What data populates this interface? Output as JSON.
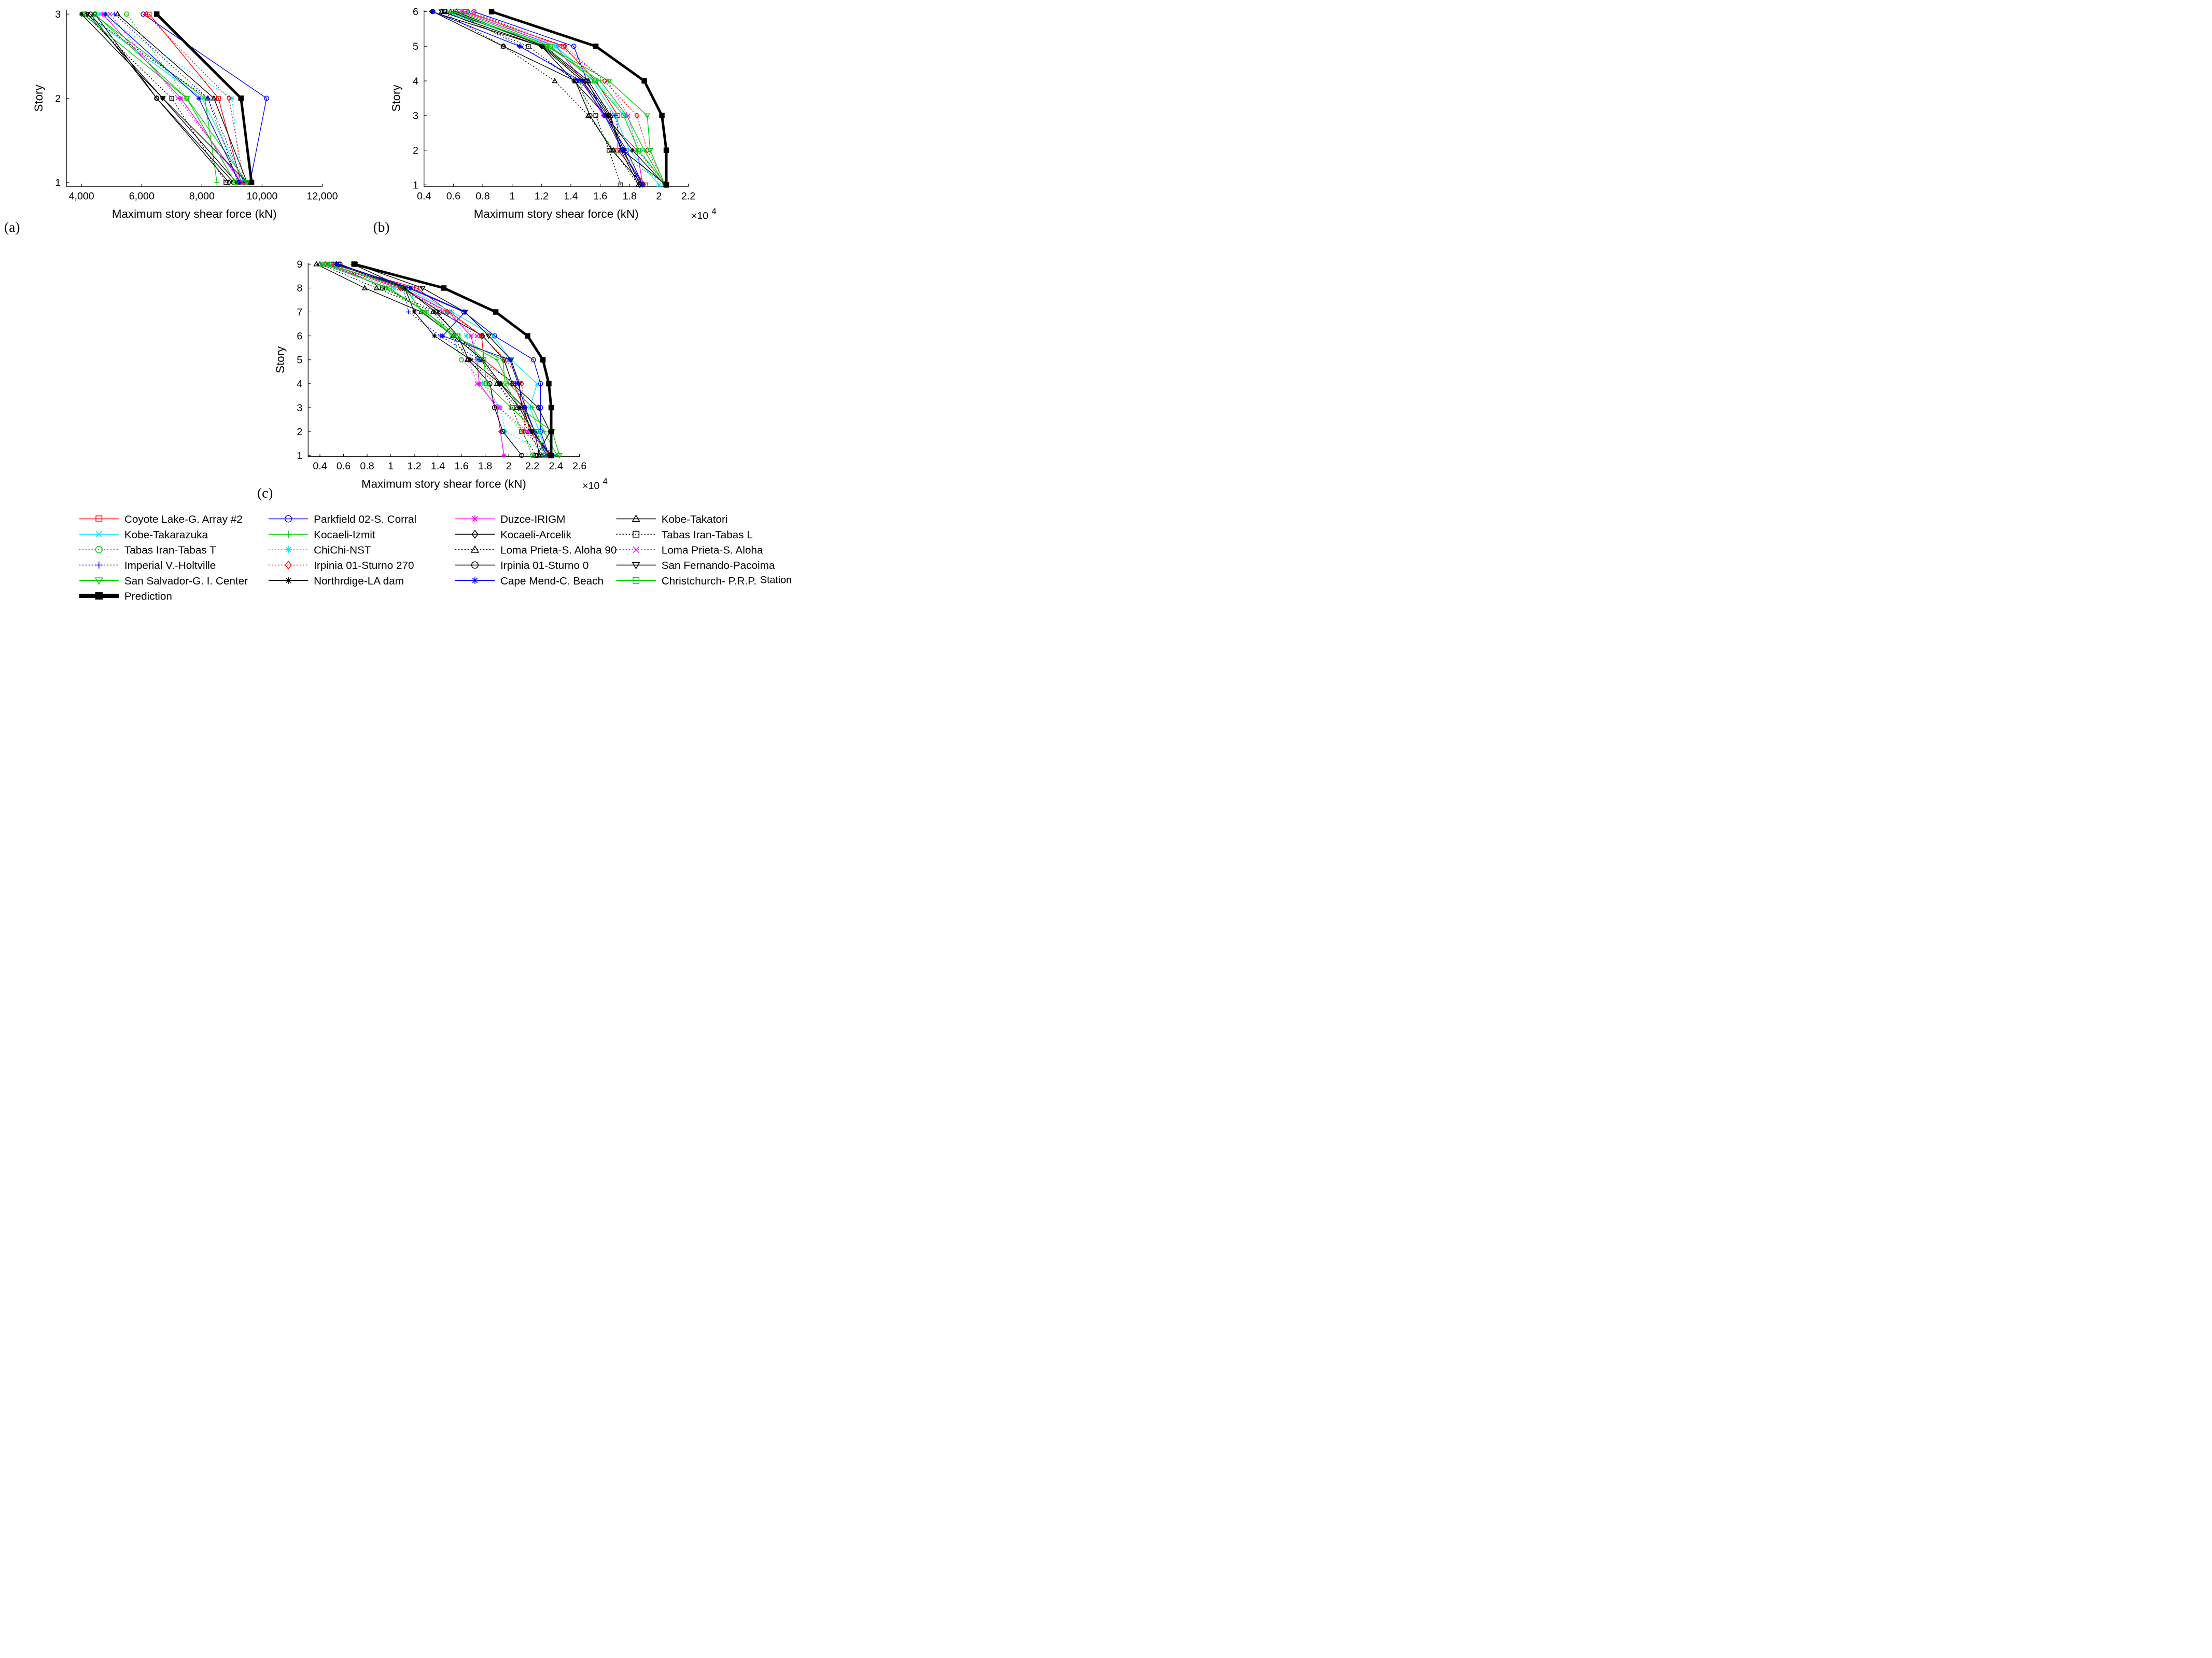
{
  "figure": {
    "panel_labels": [
      "(a)",
      "(b)",
      "(c)"
    ],
    "legend": {
      "entries": [
        {
          "label": "Coyote Lake-G. Array #2",
          "color": "#ff0000",
          "marker": "square",
          "dash": "solid"
        },
        {
          "label": "Parkfield 02-S. Corral",
          "color": "#0000ff",
          "marker": "circle",
          "dash": "solid"
        },
        {
          "label": "Duzce-IRIGM",
          "color": "#ff00ff",
          "marker": "asterisk",
          "dash": "solid"
        },
        {
          "label": "Kobe-Takatori",
          "color": "#000000",
          "marker": "triangle",
          "dash": "solid"
        },
        {
          "label": "Kobe-Takarazuka",
          "color": "#00e5ff",
          "marker": "x",
          "dash": "solid"
        },
        {
          "label": "Kocaeli-Izmit",
          "color": "#00cc00",
          "marker": "plus",
          "dash": "solid"
        },
        {
          "label": "Kocaeli-Arcelik",
          "color": "#000000",
          "marker": "diamond",
          "dash": "solid"
        },
        {
          "label": "Tabas Iran-Tabas L",
          "color": "#000000",
          "marker": "square",
          "dash": "dotted"
        },
        {
          "label": "Tabas Iran-Tabas T",
          "color": "#00cc00",
          "marker": "circle",
          "dash": "dotted"
        },
        {
          "label": "ChiChi-NST",
          "color": "#00e5ff",
          "marker": "asterisk",
          "dash": "dotted"
        },
        {
          "label": "Loma Prieta-S. Aloha 90",
          "color": "#000000",
          "marker": "triangle",
          "dash": "dotted"
        },
        {
          "label": "Loma Prieta-S. Aloha",
          "color": "#ff00ff",
          "marker": "x",
          "dash": "dotted"
        },
        {
          "label": "Imperial V.-Holtville",
          "color": "#0000ff",
          "marker": "plus",
          "dash": "dotted"
        },
        {
          "label": "Irpinia 01-Sturno 270",
          "color": "#ff0000",
          "marker": "diamond",
          "dash": "dotted"
        },
        {
          "label": "Irpinia 01-Sturno 0",
          "color": "#000000",
          "marker": "circle",
          "dash": "solid"
        },
        {
          "label": "San Fernando-Pacoima",
          "color": "#000000",
          "marker": "triangle-down",
          "dash": "solid"
        },
        {
          "label": "San Salvador-G. I. Center",
          "color": "#00cc00",
          "marker": "triangle-down",
          "dash": "solid"
        },
        {
          "label": "Northrdige-LA dam",
          "color": "#000000",
          "marker": "asterisk",
          "dash": "solid"
        },
        {
          "label": "Cape Mend-C. Beach",
          "color": "#0000ff",
          "marker": "asterisk",
          "dash": "solid"
        },
        {
          "label": "Christchurch- P.R.P.",
          "color": "#00cc00",
          "marker": "square",
          "dash": "solid"
        },
        {
          "label": "Prediction",
          "color": "#000000",
          "marker": "filled-square",
          "dash": "thick"
        }
      ],
      "christchurch_suffix": "Station"
    }
  },
  "chart_data": [
    {
      "type": "line",
      "panel": "(a)",
      "orientation": "horizontal-profile",
      "title": "",
      "xlabel": "Maximum story shear force (kN)",
      "ylabel": "Story",
      "xlim": [
        3500,
        12000
      ],
      "ylim": [
        0.95,
        3.05
      ],
      "xticks": [
        4000,
        6000,
        8000,
        10000,
        12000
      ],
      "xtick_labels": [
        "4,000",
        "6,000",
        "8,000",
        "10,000",
        "12,000"
      ],
      "yticks": [
        1,
        2,
        3
      ],
      "ytick_labels": [
        "1",
        "2",
        "3"
      ],
      "x_multiplier": "",
      "stories": [
        1,
        2,
        3
      ],
      "series": [
        {
          "name": "Coyote Lake-G. Array #2",
          "values": [
            9300,
            8550,
            6250
          ]
        },
        {
          "name": "Parkfield 02-S. Corral",
          "values": [
            9600,
            10150,
            6050
          ]
        },
        {
          "name": "Duzce-IRIGM",
          "values": [
            9300,
            7300,
            4700
          ]
        },
        {
          "name": "Kobe-Takatori",
          "values": [
            9500,
            8400,
            5200
          ]
        },
        {
          "name": "Kobe-Takarazuka",
          "values": [
            9400,
            8000,
            4150
          ]
        },
        {
          "name": "Kocaeli-Izmit",
          "values": [
            8500,
            8100,
            4400
          ]
        },
        {
          "name": "Kocaeli-Arcelik",
          "values": [
            8900,
            6500,
            4450
          ]
        },
        {
          "name": "Tabas Iran-Tabas L",
          "values": [
            8800,
            7000,
            4100
          ]
        },
        {
          "name": "Tabas Iran-Tabas T",
          "values": [
            9100,
            7500,
            5500
          ]
        },
        {
          "name": "ChiChi-NST",
          "values": [
            9300,
            9000,
            4600
          ]
        },
        {
          "name": "Loma Prieta-S. Aloha 90",
          "values": [
            9200,
            8200,
            4150
          ]
        },
        {
          "name": "Loma Prieta-S. Aloha",
          "values": [
            9350,
            7200,
            4950
          ]
        },
        {
          "name": "Imperial V.-Holtville",
          "values": [
            9400,
            8200,
            5100
          ]
        },
        {
          "name": "Irpinia 01-Sturno 270",
          "values": [
            9400,
            8900,
            6150
          ]
        },
        {
          "name": "Irpinia 01-Sturno 0",
          "values": [
            9050,
            6500,
            4300
          ]
        },
        {
          "name": "San Fernando-Pacoima",
          "values": [
            9500,
            6700,
            4200
          ]
        },
        {
          "name": "San Salvador-G. I. Center",
          "values": [
            9500,
            7500,
            4050
          ]
        },
        {
          "name": "Northrdige-LA dam",
          "values": [
            9150,
            6700,
            4000
          ]
        },
        {
          "name": "Cape Mend-C. Beach",
          "values": [
            9250,
            7900,
            4800
          ]
        },
        {
          "name": "Christchurch- P.R.P.",
          "values": [
            9100,
            7500,
            4450
          ]
        },
        {
          "name": "Prediction",
          "values": [
            9650,
            9300,
            6500
          ]
        }
      ]
    },
    {
      "type": "line",
      "panel": "(b)",
      "orientation": "horizontal-profile",
      "title": "",
      "xlabel": "Maximum story shear force (kN)",
      "ylabel": "Story",
      "xlim": [
        0.4,
        2.2
      ],
      "ylim": [
        0.95,
        6.05
      ],
      "xticks": [
        0.4,
        0.6,
        0.8,
        1.0,
        1.2,
        1.4,
        1.6,
        1.8,
        2.0,
        2.2
      ],
      "xtick_labels": [
        "0.4",
        "0.6",
        "0.8",
        "1",
        "1.2",
        "1.4",
        "1.6",
        "1.8",
        "2",
        "2.2"
      ],
      "yticks": [
        1,
        2,
        3,
        4,
        5,
        6
      ],
      "ytick_labels": [
        "1",
        "2",
        "3",
        "4",
        "5",
        "6"
      ],
      "x_multiplier": "×10",
      "x_multiplier_exp": "4",
      "stories": [
        1,
        2,
        3,
        4,
        5,
        6
      ],
      "series": [
        {
          "name": "Coyote Lake-G. Array #2",
          "values": [
            1.91,
            1.72,
            1.72,
            1.57,
            1.35,
            0.68
          ]
        },
        {
          "name": "Parkfield 02-S. Corral",
          "values": [
            1.89,
            1.78,
            1.63,
            1.51,
            1.42,
            0.74
          ]
        },
        {
          "name": "Duzce-IRIGM",
          "values": [
            1.89,
            1.85,
            1.62,
            1.48,
            1.3,
            0.66
          ]
        },
        {
          "name": "Kobe-Takatori",
          "values": [
            1.86,
            1.74,
            1.67,
            1.52,
            1.22,
            0.58
          ]
        },
        {
          "name": "Kobe-Takarazuka",
          "values": [
            2.0,
            1.8,
            1.7,
            1.55,
            1.3,
            0.53
          ]
        },
        {
          "name": "Kocaeli-Izmit",
          "values": [
            2.04,
            1.9,
            1.78,
            1.6,
            1.24,
            0.56
          ]
        },
        {
          "name": "Kocaeli-Arcelik",
          "values": [
            1.87,
            1.76,
            1.66,
            1.5,
            1.21,
            0.62
          ]
        },
        {
          "name": "Tabas Iran-Tabas L",
          "values": [
            1.74,
            1.66,
            1.57,
            1.43,
            1.11,
            0.54
          ]
        },
        {
          "name": "Tabas Iran-Tabas T",
          "values": [
            2.05,
            1.69,
            1.53,
            1.46,
            1.24,
            0.74
          ]
        },
        {
          "name": "ChiChi-NST",
          "values": [
            2.0,
            1.88,
            1.77,
            1.57,
            1.3,
            0.7
          ]
        },
        {
          "name": "Loma Prieta-S. Aloha 90",
          "values": [
            1.86,
            1.69,
            1.52,
            1.29,
            0.94,
            0.52
          ]
        },
        {
          "name": "Loma Prieta-S. Aloha",
          "values": [
            2.05,
            1.85,
            1.79,
            1.65,
            1.32,
            0.74
          ]
        },
        {
          "name": "Imperial V.-Holtville",
          "values": [
            1.88,
            1.75,
            1.7,
            1.45,
            1.06,
            0.6
          ]
        },
        {
          "name": "Irpinia 01-Sturno 270",
          "values": [
            2.05,
            1.92,
            1.85,
            1.63,
            1.36,
            0.7
          ]
        },
        {
          "name": "Irpinia 01-Sturno 0",
          "values": [
            1.89,
            1.68,
            1.53,
            1.43,
            0.94,
            0.46
          ]
        },
        {
          "name": "San Fernando-Pacoima",
          "values": [
            2.05,
            1.75,
            1.65,
            1.48,
            1.2,
            0.52
          ]
        },
        {
          "name": "San Salvador-G. I. Center",
          "values": [
            2.04,
            1.94,
            1.92,
            1.66,
            1.24,
            0.6
          ]
        },
        {
          "name": "Northrdige-LA dam",
          "values": [
            2.04,
            1.82,
            1.64,
            1.42,
            1.2,
            0.45
          ]
        },
        {
          "name": "Cape Mend-C. Beach",
          "values": [
            1.89,
            1.75,
            1.63,
            1.47,
            1.05,
            0.46
          ]
        },
        {
          "name": "Christchurch- P.R.P.",
          "values": [
            2.05,
            1.86,
            1.76,
            1.56,
            1.26,
            0.64
          ]
        },
        {
          "name": "Prediction",
          "values": [
            2.05,
            2.05,
            2.02,
            1.9,
            1.57,
            0.86
          ]
        }
      ]
    },
    {
      "type": "line",
      "panel": "(c)",
      "orientation": "horizontal-profile",
      "title": "",
      "xlabel": "Maximum story shear force (kN)",
      "ylabel": "Story",
      "xlim": [
        0.3,
        2.6
      ],
      "ylim": [
        0.95,
        9.05
      ],
      "xticks": [
        0.4,
        0.6,
        0.8,
        1.0,
        1.2,
        1.4,
        1.6,
        1.8,
        2.0,
        2.2,
        2.4,
        2.6
      ],
      "xtick_labels": [
        "0.4",
        "0.6",
        "0.8",
        "1",
        "1.2",
        "1.4",
        "1.6",
        "1.8",
        "2",
        "2.2",
        "2.4",
        "2.6"
      ],
      "yticks": [
        1,
        2,
        3,
        4,
        5,
        6,
        7,
        8,
        9
      ],
      "ytick_labels": [
        "1",
        "2",
        "3",
        "4",
        "5",
        "6",
        "7",
        "8",
        "9"
      ],
      "x_multiplier": "×10",
      "x_multiplier_exp": "4",
      "stories": [
        1,
        2,
        3,
        4,
        5,
        6,
        7,
        8,
        9
      ],
      "series": [
        {
          "name": "Coyote Lake-G. Array #2",
          "values": [
            2.35,
            2.18,
            2.13,
            2.04,
            1.79,
            1.77,
            1.5,
            1.22,
            0.5
          ]
        },
        {
          "name": "Parkfield 02-S. Corral",
          "values": [
            2.34,
            2.27,
            2.27,
            2.27,
            2.21,
            1.88,
            1.62,
            1.15,
            0.56
          ]
        },
        {
          "name": "Duzce-IRIGM",
          "values": [
            1.96,
            1.93,
            1.9,
            1.75,
            1.73,
            1.68,
            1.49,
            1.1,
            0.47
          ]
        },
        {
          "name": "Kobe-Takatori",
          "values": [
            2.26,
            2.22,
            2.13,
            1.93,
            1.78,
            1.53,
            1.26,
            0.78,
            0.37
          ]
        },
        {
          "name": "Kobe-Takarazuka",
          "values": [
            2.32,
            2.26,
            2.18,
            2.24,
            2.02,
            1.87,
            1.52,
            1.13,
            0.44
          ]
        },
        {
          "name": "Kocaeli-Izmit",
          "values": [
            2.41,
            2.3,
            2.2,
            2.0,
            1.9,
            1.53,
            1.3,
            0.97,
            0.46
          ]
        },
        {
          "name": "Kocaeli-Arcelik",
          "values": [
            2.24,
            2.35,
            2.25,
            2.03,
            1.96,
            1.78,
            1.42,
            1.1,
            0.54
          ]
        },
        {
          "name": "Tabas Iran-Tabas L",
          "values": [
            2.23,
            2.11,
            2.03,
            1.92,
            1.76,
            1.57,
            1.39,
            0.93,
            0.52
          ]
        },
        {
          "name": "Tabas Iran-Tabas T",
          "values": [
            2.2,
            2.12,
            1.92,
            1.8,
            1.6,
            1.52,
            1.3,
            0.95,
            0.48
          ]
        },
        {
          "name": "ChiChi-NST",
          "values": [
            2.38,
            1.97,
            1.93,
            1.78,
            1.74,
            1.64,
            1.47,
            1.03,
            0.43
          ]
        },
        {
          "name": "Loma Prieta-S. Aloha 90",
          "values": [
            2.28,
            2.17,
            2.07,
            1.9,
            1.65,
            1.53,
            1.36,
            0.88,
            0.4
          ]
        },
        {
          "name": "Loma Prieta-S. Aloha",
          "values": [
            2.37,
            2.16,
            1.92,
            1.73,
            1.66,
            1.73,
            1.44,
            1.07,
            0.41
          ]
        },
        {
          "name": "Imperial V.-Holtville",
          "values": [
            2.38,
            2.19,
            2.12,
            2.06,
            1.75,
            1.42,
            1.15,
            1.11,
            0.54
          ]
        },
        {
          "name": "Irpinia 01-Sturno 270",
          "values": [
            2.34,
            2.13,
            2.14,
            2.11,
            1.98,
            1.77,
            1.48,
            1.08,
            0.45
          ]
        },
        {
          "name": "Irpinia 01-Sturno 0",
          "values": [
            2.11,
            1.95,
            1.88,
            1.84,
            1.66,
            1.57,
            1.38,
            1.12,
            0.57
          ]
        },
        {
          "name": "San Fernando-Pacoima",
          "values": [
            2.36,
            2.2,
            2.11,
            2.09,
            2.02,
            1.83,
            1.63,
            1.27,
            0.7
          ]
        },
        {
          "name": "San Salvador-G. I. Center",
          "values": [
            2.43,
            2.37,
            2.09,
            1.97,
            1.95,
            1.53,
            1.27,
            1.12,
            0.47
          ]
        },
        {
          "name": "Northrdige-LA dam",
          "values": [
            2.35,
            2.2,
            2.09,
            1.93,
            1.68,
            1.37,
            1.2,
            1.12,
            0.68
          ]
        },
        {
          "name": "Cape Mend-C. Beach",
          "values": [
            2.32,
            2.22,
            2.14,
            2.08,
            2.01,
            1.44,
            1.63,
            1.17,
            0.55
          ]
        },
        {
          "name": "Christchurch- P.R.P.",
          "values": [
            2.3,
            2.24,
            2.02,
            1.81,
            1.79,
            1.57,
            1.29,
            0.99,
            0.42
          ]
        },
        {
          "name": "Prediction",
          "values": [
            2.36,
            2.36,
            2.36,
            2.34,
            2.29,
            2.16,
            1.89,
            1.45,
            0.69
          ]
        }
      ]
    }
  ]
}
